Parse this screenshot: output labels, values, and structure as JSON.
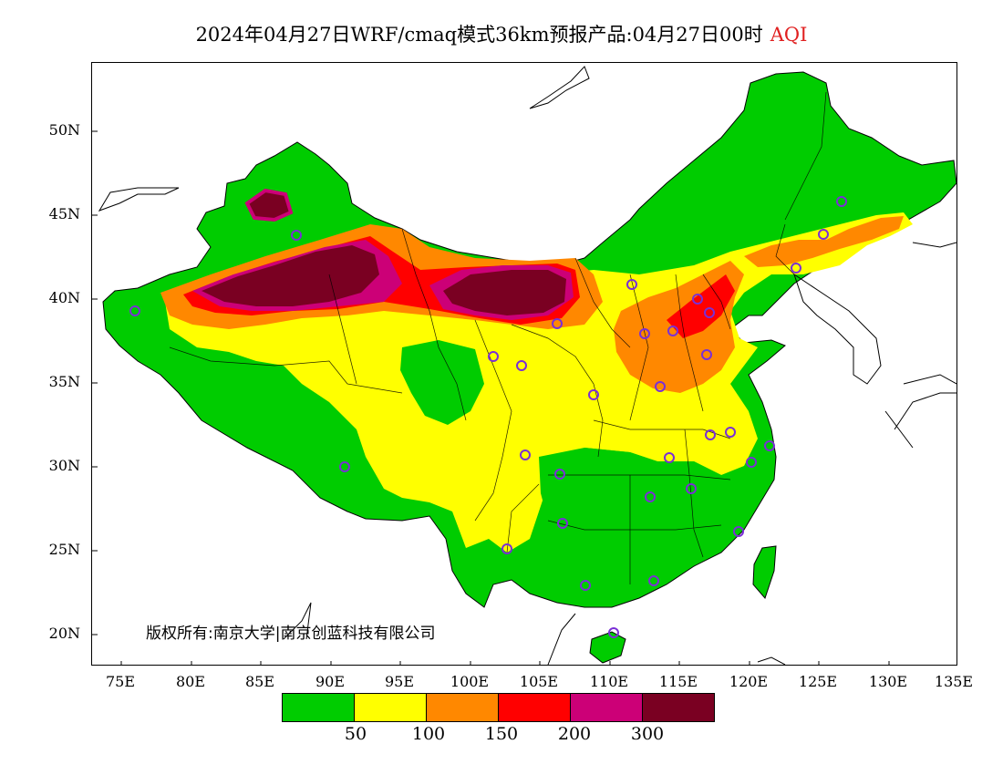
{
  "title": {
    "main": "2024年04月27日WRF/cmaq模式36km预报产品:04月27日00时",
    "variable": "AQI"
  },
  "axes": {
    "lat_ticks": [
      "50N",
      "45N",
      "40N",
      "35N",
      "30N",
      "25N",
      "20N"
    ],
    "lon_ticks": [
      "75E",
      "80E",
      "85E",
      "90E",
      "95E",
      "100E",
      "105E",
      "110E",
      "115E",
      "120E",
      "125E",
      "130E",
      "135E"
    ]
  },
  "copyright": "版权所有:南京大学|南京创蓝科技有限公司",
  "legend": {
    "colors": [
      "#00cc00",
      "#ffff00",
      "#ff8800",
      "#ff0000",
      "#cc0077",
      "#7a0022"
    ],
    "labels": [
      "50",
      "100",
      "150",
      "200",
      "300"
    ]
  },
  "colors": {
    "good": "#00cc00",
    "moderate": "#ffff00",
    "usg": "#ff8800",
    "unhealthy": "#ff0000",
    "very_unhealthy": "#cc0077",
    "hazardous": "#7a0022",
    "title_variable": "#e02020",
    "city_marker": "#7a2fd6"
  }
}
